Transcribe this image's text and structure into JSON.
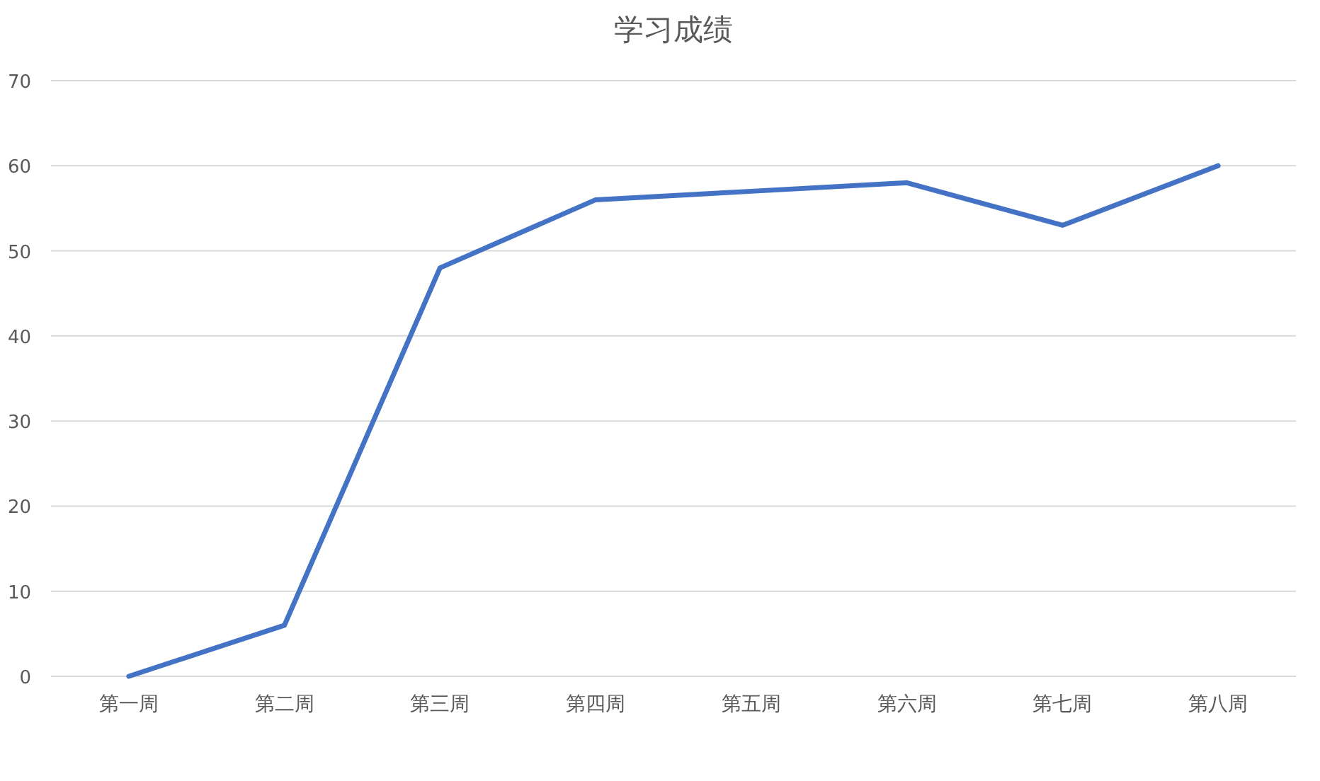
{
  "chart_data": {
    "type": "line",
    "title": "学习成绩",
    "categories": [
      "第一周",
      "第二周",
      "第三周",
      "第四周",
      "第五周",
      "第六周",
      "第七周",
      "第八周"
    ],
    "series": [
      {
        "color": "#4472c4",
        "values": [
          0,
          6,
          48,
          56,
          57,
          58,
          53,
          60
        ]
      }
    ],
    "ylim": [
      0,
      70
    ],
    "yticks": [
      0,
      10,
      20,
      30,
      40,
      50,
      60,
      70
    ],
    "grid": "y",
    "marker": "none",
    "line_style": "solid"
  }
}
